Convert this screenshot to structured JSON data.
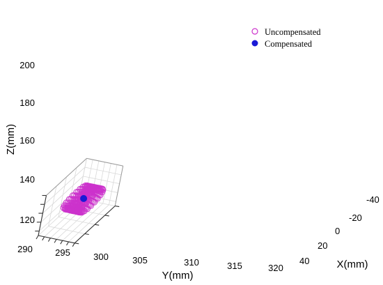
{
  "chart_data": {
    "type": "scatter",
    "title": "",
    "xlabel": "Y(mm)",
    "ylabel": "X(mm)",
    "zlabel": "Z(mm)",
    "y_ticks": [
      "290",
      "295",
      "300",
      "305",
      "310",
      "315",
      "320"
    ],
    "x_ticks": [
      "-40",
      "-20",
      "0",
      "20",
      "40"
    ],
    "z_ticks": [
      "120",
      "140",
      "160",
      "180",
      "200"
    ],
    "grid": true,
    "legend": "top-right",
    "series": [
      {
        "name": "Uncompensated",
        "marker": "open-circle",
        "color": "#cc33cc",
        "trajectory": {
          "center": {
            "X": 0,
            "Y": 307,
            "Z": 160
          },
          "radius": 12,
          "coils": 12,
          "points": 240,
          "axis": "Y"
        }
      },
      {
        "name": "Compensated",
        "marker": "filled-circle",
        "color": "#1a1ad6",
        "points": [
          {
            "X": 0,
            "Y": 307,
            "Z": 161
          }
        ]
      }
    ]
  }
}
